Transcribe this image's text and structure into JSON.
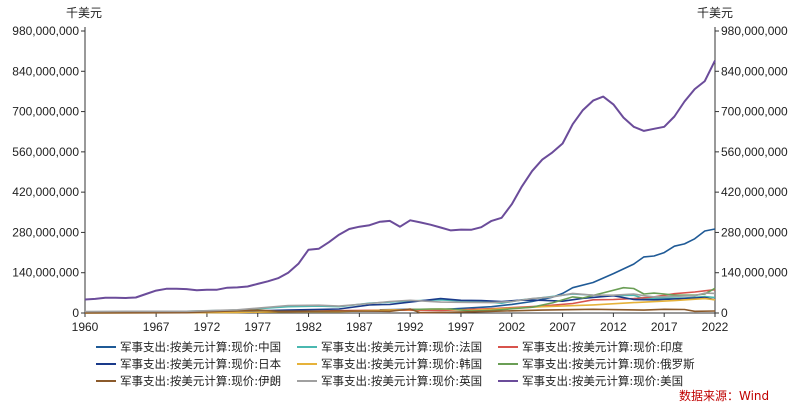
{
  "chart_data": {
    "type": "line",
    "unit_left": "千美元",
    "unit_right": "千美元",
    "source": "数据来源：Wind",
    "ylim": [
      0,
      980000000
    ],
    "xlim": [
      1960,
      2022
    ],
    "y_ticks": [
      0,
      140000000,
      280000000,
      420000000,
      560000000,
      700000000,
      840000000,
      980000000
    ],
    "y_tick_labels": [
      "0",
      "140,000,000",
      "280,000,000",
      "420,000,000",
      "560,000,000",
      "700,000,000",
      "840,000,000",
      "980,000,000"
    ],
    "x_ticks": [
      1960,
      1967,
      1972,
      1977,
      1982,
      1987,
      1992,
      1997,
      2002,
      2007,
      2012,
      2017,
      2022
    ],
    "grid": false,
    "legend_position": "bottom",
    "series": [
      {
        "name": "军事支出:按美元计算:现价:中国",
        "color": "#1f5a96",
        "points": [
          [
            1989,
            11000000
          ],
          [
            1992,
            13000000
          ],
          [
            1995,
            12000000
          ],
          [
            1997,
            16000000
          ],
          [
            2000,
            22000000
          ],
          [
            2002,
            30000000
          ],
          [
            2004,
            40000000
          ],
          [
            2006,
            55000000
          ],
          [
            2007,
            68000000
          ],
          [
            2008,
            88000000
          ],
          [
            2010,
            106000000
          ],
          [
            2012,
            137000000
          ],
          [
            2014,
            170000000
          ],
          [
            2015,
            195000000
          ],
          [
            2016,
            198000000
          ],
          [
            2017,
            210000000
          ],
          [
            2018,
            232000000
          ],
          [
            2019,
            240000000
          ],
          [
            2020,
            258000000
          ],
          [
            2021,
            285000000
          ],
          [
            2022,
            292000000
          ]
        ]
      },
      {
        "name": "军事支出:按美元计算:现价:法国",
        "color": "#4ab8b0",
        "points": [
          [
            1960,
            4000000
          ],
          [
            1965,
            5000000
          ],
          [
            1970,
            6000000
          ],
          [
            1975,
            10000000
          ],
          [
            1980,
            22000000
          ],
          [
            1983,
            24000000
          ],
          [
            1985,
            22000000
          ],
          [
            1988,
            34000000
          ],
          [
            1991,
            40000000
          ],
          [
            1993,
            43000000
          ],
          [
            1995,
            46000000
          ],
          [
            1997,
            42000000
          ],
          [
            1999,
            40000000
          ],
          [
            2001,
            34000000
          ],
          [
            2003,
            46000000
          ],
          [
            2005,
            53000000
          ],
          [
            2008,
            66000000
          ],
          [
            2010,
            62000000
          ],
          [
            2012,
            60000000
          ],
          [
            2014,
            62000000
          ],
          [
            2015,
            50000000
          ],
          [
            2017,
            52000000
          ],
          [
            2019,
            52000000
          ],
          [
            2021,
            57000000
          ],
          [
            2022,
            54000000
          ]
        ]
      },
      {
        "name": "军事支出:按美元计算:现价:印度",
        "color": "#d8534c",
        "points": [
          [
            1960,
            1000000
          ],
          [
            1970,
            2000000
          ],
          [
            1980,
            5000000
          ],
          [
            1985,
            8000000
          ],
          [
            1990,
            10000000
          ],
          [
            1995,
            9000000
          ],
          [
            2000,
            15000000
          ],
          [
            2005,
            24000000
          ],
          [
            2008,
            33000000
          ],
          [
            2010,
            46000000
          ],
          [
            2012,
            47000000
          ],
          [
            2014,
            50000000
          ],
          [
            2016,
            56000000
          ],
          [
            2018,
            67000000
          ],
          [
            2020,
            73000000
          ],
          [
            2021,
            77000000
          ],
          [
            2022,
            81000000
          ]
        ]
      },
      {
        "name": "军事支出:按美元计算:现价:日本",
        "color": "#1a3a8a",
        "points": [
          [
            1960,
            1000000
          ],
          [
            1965,
            2000000
          ],
          [
            1970,
            4000000
          ],
          [
            1975,
            6000000
          ],
          [
            1980,
            10000000
          ],
          [
            1985,
            14000000
          ],
          [
            1988,
            28000000
          ],
          [
            1990,
            30000000
          ],
          [
            1992,
            38000000
          ],
          [
            1995,
            50000000
          ],
          [
            1997,
            44000000
          ],
          [
            1999,
            43000000
          ],
          [
            2001,
            40000000
          ],
          [
            2003,
            45000000
          ],
          [
            2005,
            44000000
          ],
          [
            2007,
            41000000
          ],
          [
            2009,
            51000000
          ],
          [
            2012,
            60000000
          ],
          [
            2014,
            47000000
          ],
          [
            2016,
            46000000
          ],
          [
            2018,
            49000000
          ],
          [
            2020,
            52000000
          ],
          [
            2021,
            54000000
          ],
          [
            2022,
            46000000
          ]
        ]
      },
      {
        "name": "军事支出:按美元计算:现价:韩国",
        "color": "#e6b23a",
        "points": [
          [
            1960,
            500000
          ],
          [
            1970,
            1000000
          ],
          [
            1975,
            2000000
          ],
          [
            1980,
            5000000
          ],
          [
            1985,
            5000000
          ],
          [
            1990,
            10000000
          ],
          [
            1995,
            14000000
          ],
          [
            1998,
            9000000
          ],
          [
            2000,
            13000000
          ],
          [
            2005,
            22000000
          ],
          [
            2010,
            28000000
          ],
          [
            2014,
            36000000
          ],
          [
            2018,
            43000000
          ],
          [
            2021,
            50000000
          ],
          [
            2022,
            46000000
          ]
        ]
      },
      {
        "name": "军事支出:按美元计算:现价:俄罗斯",
        "color": "#6a9e55",
        "points": [
          [
            1992,
            12000000
          ],
          [
            1994,
            14000000
          ],
          [
            1996,
            14000000
          ],
          [
            1998,
            7000000
          ],
          [
            2000,
            9000000
          ],
          [
            2004,
            20000000
          ],
          [
            2006,
            35000000
          ],
          [
            2008,
            56000000
          ],
          [
            2009,
            52000000
          ],
          [
            2011,
            70000000
          ],
          [
            2013,
            88000000
          ],
          [
            2014,
            85000000
          ],
          [
            2015,
            66000000
          ],
          [
            2016,
            69000000
          ],
          [
            2017,
            66000000
          ],
          [
            2018,
            62000000
          ],
          [
            2020,
            62000000
          ],
          [
            2021,
            66000000
          ],
          [
            2022,
            86000000
          ]
        ]
      },
      {
        "name": "军事支出:按美元计算:现价:伊朗",
        "color": "#8b5a2b",
        "points": [
          [
            1960,
            500000
          ],
          [
            1970,
            1000000
          ],
          [
            1975,
            8000000
          ],
          [
            1977,
            10000000
          ],
          [
            1979,
            6000000
          ],
          [
            1985,
            7000000
          ],
          [
            1990,
            6000000
          ],
          [
            1992,
            14000000
          ],
          [
            1993,
            1000000
          ],
          [
            1995,
            2000000
          ],
          [
            2000,
            6000000
          ],
          [
            2005,
            10000000
          ],
          [
            2010,
            13000000
          ],
          [
            2015,
            10000000
          ],
          [
            2017,
            13000000
          ],
          [
            2019,
            12000000
          ],
          [
            2020,
            6000000
          ],
          [
            2022,
            7000000
          ]
        ]
      },
      {
        "name": "军事支出:按美元计算:现价:英国",
        "color": "#a0a0a0",
        "points": [
          [
            1960,
            5000000
          ],
          [
            1965,
            6000000
          ],
          [
            1970,
            6000000
          ],
          [
            1975,
            11000000
          ],
          [
            1980,
            26000000
          ],
          [
            1983,
            27000000
          ],
          [
            1985,
            24000000
          ],
          [
            1988,
            33000000
          ],
          [
            1990,
            40000000
          ],
          [
            1992,
            44000000
          ],
          [
            1995,
            38000000
          ],
          [
            1998,
            37000000
          ],
          [
            2000,
            36000000
          ],
          [
            2002,
            40000000
          ],
          [
            2004,
            50000000
          ],
          [
            2006,
            56000000
          ],
          [
            2008,
            68000000
          ],
          [
            2010,
            62000000
          ],
          [
            2012,
            62000000
          ],
          [
            2014,
            66000000
          ],
          [
            2015,
            60000000
          ],
          [
            2016,
            56000000
          ],
          [
            2018,
            58000000
          ],
          [
            2020,
            60000000
          ],
          [
            2021,
            69000000
          ],
          [
            2022,
            68000000
          ]
        ]
      },
      {
        "name": "军事支出:按美元计算:现价:美国",
        "color": "#6b4c9a",
        "points": [
          [
            1960,
            47000000
          ],
          [
            1961,
            49000000
          ],
          [
            1962,
            53000000
          ],
          [
            1963,
            53000000
          ],
          [
            1964,
            52000000
          ],
          [
            1965,
            54000000
          ],
          [
            1966,
            66000000
          ],
          [
            1967,
            78000000
          ],
          [
            1968,
            84000000
          ],
          [
            1969,
            84000000
          ],
          [
            1970,
            83000000
          ],
          [
            1971,
            79000000
          ],
          [
            1972,
            81000000
          ],
          [
            1973,
            81000000
          ],
          [
            1974,
            88000000
          ],
          [
            1975,
            89000000
          ],
          [
            1976,
            92000000
          ],
          [
            1977,
            101000000
          ],
          [
            1978,
            110000000
          ],
          [
            1979,
            121000000
          ],
          [
            1980,
            140000000
          ],
          [
            1981,
            171000000
          ],
          [
            1982,
            220000000
          ],
          [
            1983,
            223000000
          ],
          [
            1984,
            246000000
          ],
          [
            1985,
            272000000
          ],
          [
            1986,
            292000000
          ],
          [
            1987,
            300000000
          ],
          [
            1988,
            305000000
          ],
          [
            1989,
            317000000
          ],
          [
            1990,
            320000000
          ],
          [
            1991,
            300000000
          ],
          [
            1992,
            322000000
          ],
          [
            1993,
            315000000
          ],
          [
            1994,
            307000000
          ],
          [
            1995,
            297000000
          ],
          [
            1996,
            287000000
          ],
          [
            1997,
            290000000
          ],
          [
            1998,
            289000000
          ],
          [
            1999,
            298000000
          ],
          [
            2000,
            320000000
          ],
          [
            2001,
            331000000
          ],
          [
            2002,
            378000000
          ],
          [
            2003,
            440000000
          ],
          [
            2004,
            493000000
          ],
          [
            2005,
            533000000
          ],
          [
            2006,
            558000000
          ],
          [
            2007,
            589000000
          ],
          [
            2008,
            656000000
          ],
          [
            2009,
            705000000
          ],
          [
            2010,
            738000000
          ],
          [
            2011,
            752000000
          ],
          [
            2012,
            725000000
          ],
          [
            2013,
            679000000
          ],
          [
            2014,
            647000000
          ],
          [
            2015,
            633000000
          ],
          [
            2016,
            640000000
          ],
          [
            2017,
            647000000
          ],
          [
            2018,
            683000000
          ],
          [
            2019,
            735000000
          ],
          [
            2020,
            778000000
          ],
          [
            2021,
            806000000
          ],
          [
            2022,
            877000000
          ]
        ]
      }
    ]
  }
}
